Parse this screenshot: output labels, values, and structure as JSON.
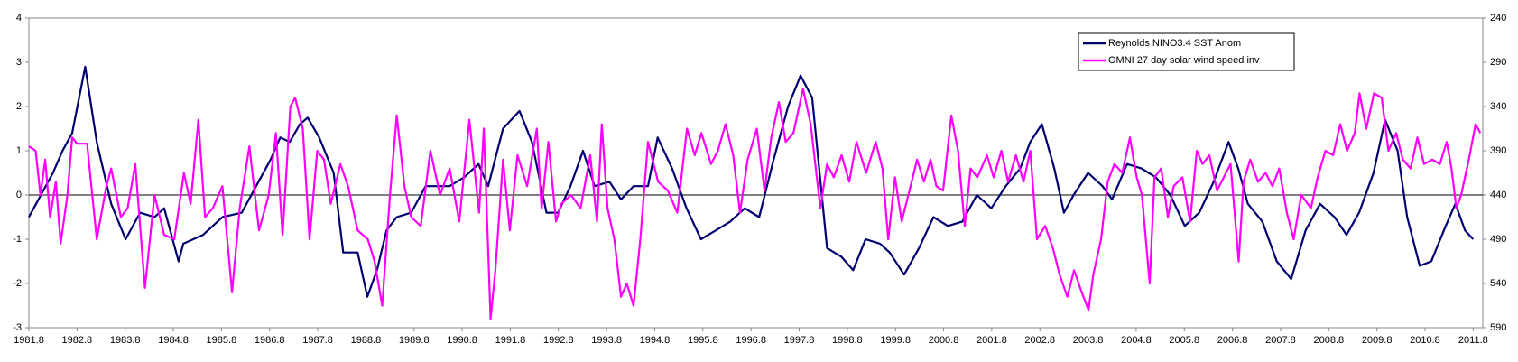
{
  "chart_data": {
    "type": "line",
    "xlim": [
      1981.8,
      2012.0
    ],
    "xticks": [
      1981.8,
      1982.8,
      1983.8,
      1984.8,
      1985.8,
      1986.8,
      1987.8,
      1988.8,
      1989.8,
      1990.8,
      1991.8,
      1992.8,
      1993.8,
      1994.8,
      1995.8,
      1996.8,
      1997.8,
      1998.8,
      1999.8,
      2000.8,
      2001.8,
      2002.8,
      2003.8,
      2004.8,
      2005.8,
      2006.8,
      2007.8,
      2008.8,
      2009.8,
      2010.8,
      2011.8
    ],
    "ylim": [
      -3,
      4
    ],
    "yticks": [
      -3,
      -2,
      -1,
      0,
      1,
      2,
      3,
      4
    ],
    "y2lim": [
      590,
      240
    ],
    "y2ticks": [
      240,
      290,
      340,
      390,
      440,
      490,
      540,
      590
    ],
    "legend": "upper right",
    "series": [
      {
        "name": "Reynolds NINO3.4 SST Anom",
        "color": "#000070",
        "x": [
          1981.8,
          1982.1,
          1982.3,
          1982.5,
          1982.7,
          1982.97,
          1983.21,
          1983.51,
          1983.81,
          1984.11,
          1984.41,
          1984.61,
          1984.91,
          1985.01,
          1985.42,
          1985.82,
          1986.22,
          1986.52,
          1986.82,
          1987.02,
          1987.22,
          1987.43,
          1987.59,
          1987.83,
          1988.13,
          1988.33,
          1988.63,
          1988.83,
          1989.03,
          1989.23,
          1989.44,
          1989.74,
          1990.04,
          1990.24,
          1990.54,
          1990.84,
          1991.14,
          1991.34,
          1991.65,
          1991.99,
          1992.25,
          1992.55,
          1992.79,
          1993.05,
          1993.31,
          1993.55,
          1993.86,
          1994.1,
          1994.36,
          1994.66,
          1994.86,
          1995.16,
          1995.46,
          1995.76,
          1996.07,
          1996.37,
          1996.67,
          1996.97,
          1997.27,
          1997.57,
          1997.83,
          1998.07,
          1998.38,
          1998.68,
          1998.92,
          1999.18,
          1999.48,
          1999.68,
          1999.98,
          2000.29,
          2000.59,
          2000.89,
          2001.19,
          2001.49,
          2001.79,
          2002.09,
          2002.39,
          2002.6,
          2002.84,
          2003.1,
          2003.3,
          2003.5,
          2003.8,
          2004.1,
          2004.3,
          2004.61,
          2004.91,
          2005.21,
          2005.51,
          2005.81,
          2006.11,
          2006.41,
          2006.72,
          2006.92,
          2007.12,
          2007.42,
          2007.72,
          2008.02,
          2008.32,
          2008.62,
          2008.92,
          2009.17,
          2009.43,
          2009.73,
          2009.97,
          2010.23,
          2010.43,
          2010.69,
          2010.93,
          2011.23,
          2011.43,
          2011.63,
          2011.8
        ],
        "values": [
          -0.5,
          0.1,
          0.5,
          1.0,
          1.4,
          2.9,
          1.2,
          -0.2,
          -1.0,
          -0.4,
          -0.5,
          -0.3,
          -1.5,
          -1.1,
          -0.9,
          -0.5,
          -0.4,
          0.2,
          0.8,
          1.3,
          1.2,
          1.6,
          1.75,
          1.3,
          0.5,
          -1.3,
          -1.3,
          -2.3,
          -1.7,
          -0.8,
          -0.5,
          -0.4,
          0.2,
          0.2,
          0.2,
          0.4,
          0.7,
          0.2,
          1.5,
          1.9,
          1.2,
          -0.4,
          -0.4,
          0.2,
          1.0,
          0.2,
          0.3,
          -0.1,
          0.2,
          0.2,
          1.3,
          0.6,
          -0.3,
          -1.0,
          -0.8,
          -0.6,
          -0.3,
          -0.5,
          0.8,
          2.0,
          2.7,
          2.2,
          -1.2,
          -1.4,
          -1.7,
          -1.0,
          -1.1,
          -1.3,
          -1.8,
          -1.2,
          -0.5,
          -0.7,
          -0.6,
          0.0,
          -0.3,
          0.2,
          0.6,
          1.2,
          1.6,
          0.6,
          -0.4,
          0.0,
          0.5,
          0.2,
          -0.1,
          0.7,
          0.6,
          0.4,
          0.0,
          -0.7,
          -0.4,
          0.3,
          1.2,
          0.6,
          -0.2,
          -0.6,
          -1.5,
          -1.9,
          -0.8,
          -0.2,
          -0.5,
          -0.9,
          -0.4,
          0.5,
          1.7,
          1.0,
          -0.5,
          -1.6,
          -1.5,
          -0.7,
          -0.2,
          -0.8,
          -1.0
        ]
      },
      {
        "name": "OMNI 27 day solar wind speed inv",
        "color": "#ff00ff",
        "axis": "y2",
        "x": [
          1981.8,
          1981.94,
          1982.04,
          1982.14,
          1982.24,
          1982.36,
          1982.46,
          1982.6,
          1982.7,
          1982.8,
          1983.01,
          1983.21,
          1983.41,
          1983.51,
          1983.71,
          1983.85,
          1984.01,
          1984.21,
          1984.41,
          1984.61,
          1984.82,
          1985.02,
          1985.16,
          1985.32,
          1985.46,
          1985.62,
          1985.82,
          1986.02,
          1986.18,
          1986.38,
          1986.58,
          1986.78,
          1986.93,
          1987.07,
          1987.23,
          1987.33,
          1987.49,
          1987.63,
          1987.79,
          1987.93,
          1988.07,
          1988.27,
          1988.43,
          1988.63,
          1988.84,
          1988.98,
          1989.14,
          1989.3,
          1989.44,
          1989.6,
          1989.74,
          1989.94,
          1990.14,
          1990.34,
          1990.54,
          1990.74,
          1990.95,
          1991.15,
          1991.25,
          1991.39,
          1991.49,
          1991.65,
          1991.79,
          1991.95,
          1992.15,
          1992.35,
          1992.45,
          1992.59,
          1992.75,
          1992.86,
          1993.06,
          1993.26,
          1993.46,
          1993.6,
          1993.7,
          1993.82,
          1993.96,
          1994.1,
          1994.22,
          1994.36,
          1994.5,
          1994.66,
          1994.87,
          1995.07,
          1995.27,
          1995.47,
          1995.63,
          1995.77,
          1995.97,
          1996.11,
          1996.27,
          1996.43,
          1996.57,
          1996.73,
          1996.92,
          1997.08,
          1997.22,
          1997.38,
          1997.52,
          1997.68,
          1997.88,
          1998.04,
          1998.24,
          1998.38,
          1998.52,
          1998.68,
          1998.84,
          1998.99,
          1999.19,
          1999.39,
          1999.53,
          1999.65,
          1999.79,
          1999.93,
          2000.09,
          2000.25,
          2000.39,
          2000.53,
          2000.65,
          2000.79,
          2000.96,
          2001.1,
          2001.24,
          2001.36,
          2001.5,
          2001.7,
          2001.84,
          2002.0,
          2002.14,
          2002.3,
          2002.46,
          2002.6,
          2002.74,
          2002.91,
          2003.07,
          2003.21,
          2003.37,
          2003.51,
          2003.67,
          2003.81,
          2003.91,
          2004.07,
          2004.21,
          2004.35,
          2004.51,
          2004.67,
          2004.81,
          2004.92,
          2005.08,
          2005.18,
          2005.32,
          2005.46,
          2005.58,
          2005.76,
          2005.92,
          2006.06,
          2006.18,
          2006.32,
          2006.48,
          2006.62,
          2006.76,
          2006.93,
          2007.03,
          2007.17,
          2007.33,
          2007.49,
          2007.63,
          2007.77,
          2007.93,
          2008.07,
          2008.23,
          2008.43,
          2008.57,
          2008.73,
          2008.89,
          2009.04,
          2009.18,
          2009.34,
          2009.44,
          2009.58,
          2009.74,
          2009.9,
          2010.04,
          2010.2,
          2010.34,
          2010.5,
          2010.64,
          2010.78,
          2010.95,
          2011.11,
          2011.25,
          2011.35,
          2011.45,
          2011.55,
          2011.71,
          2011.85,
          2011.95
        ],
        "values": [
          385,
          390,
          440,
          400,
          465,
          425,
          495,
          440,
          375,
          382,
          382,
          490,
          430,
          410,
          465,
          455,
          405,
          545,
          440,
          485,
          490,
          415,
          450,
          355,
          465,
          455,
          430,
          550,
          455,
          385,
          480,
          440,
          370,
          485,
          340,
          330,
          365,
          490,
          390,
          400,
          450,
          405,
          430,
          480,
          490,
          515,
          565,
          440,
          350,
          430,
          465,
          475,
          390,
          440,
          410,
          470,
          355,
          460,
          365,
          580,
          525,
          400,
          480,
          395,
          430,
          365,
          455,
          380,
          470,
          450,
          440,
          455,
          395,
          470,
          360,
          455,
          490,
          555,
          540,
          565,
          490,
          380,
          425,
          435,
          460,
          365,
          395,
          370,
          405,
          390,
          360,
          395,
          460,
          400,
          365,
          435,
          375,
          335,
          380,
          370,
          320,
          360,
          455,
          405,
          420,
          395,
          425,
          380,
          415,
          380,
          410,
          490,
          420,
          470,
          435,
          400,
          425,
          400,
          430,
          435,
          350,
          390,
          475,
          410,
          420,
          395,
          420,
          390,
          425,
          395,
          425,
          390,
          490,
          475,
          500,
          530,
          555,
          525,
          550,
          570,
          530,
          490,
          425,
          405,
          415,
          375,
          420,
          440,
          540,
          420,
          410,
          465,
          430,
          420,
          470,
          390,
          405,
          395,
          435,
          420,
          405,
          515,
          425,
          400,
          425,
          415,
          430,
          410,
          460,
          490,
          440,
          455,
          420,
          390,
          395,
          360,
          390,
          370,
          325,
          365,
          325,
          330,
          390,
          370,
          400,
          410,
          375,
          405,
          400,
          405,
          380,
          410,
          455,
          440,
          400,
          360,
          370
        ]
      }
    ]
  }
}
